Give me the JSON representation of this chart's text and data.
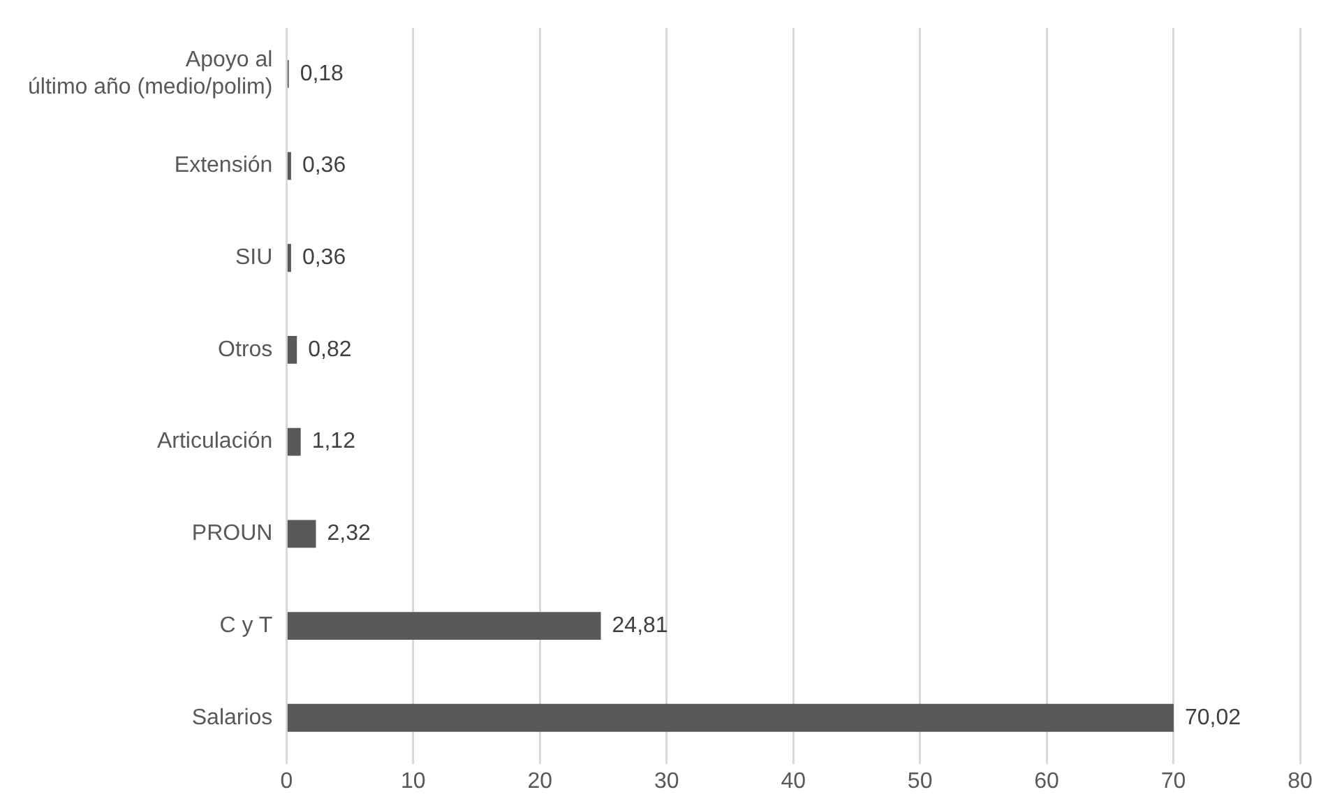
{
  "chart_data": {
    "type": "bar",
    "orientation": "horizontal",
    "categories": [
      "Apoyo al\núltimo año (medio/polim)",
      "Extensión",
      "SIU",
      "Otros",
      "Articulación",
      "PROUN",
      "C y T",
      "Salarios"
    ],
    "values": [
      0.18,
      0.36,
      0.36,
      0.82,
      1.12,
      2.32,
      24.81,
      70.02
    ],
    "value_labels": [
      "0,18",
      "0,36",
      "0,36",
      "0,82",
      "1,12",
      "2,32",
      "24,81",
      "70,02"
    ],
    "color": "#595959",
    "xlim": [
      0,
      80
    ],
    "xticks": [
      0,
      10,
      20,
      30,
      40,
      50,
      60,
      70,
      80
    ],
    "grid": "x"
  }
}
